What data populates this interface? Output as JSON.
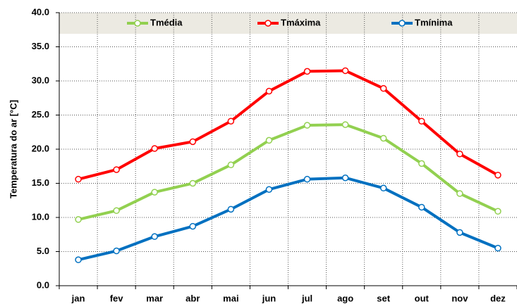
{
  "chart_data": {
    "type": "line",
    "y_label": "Temperatura do ar [°C]",
    "categories": [
      "jan",
      "fev",
      "mar",
      "abr",
      "mai",
      "jun",
      "jul",
      "ago",
      "set",
      "out",
      "nov",
      "dez"
    ],
    "series": [
      {
        "name": "Tmédia",
        "color": "#92d050",
        "values": [
          9.7,
          11.0,
          13.7,
          15.0,
          17.7,
          21.3,
          23.5,
          23.6,
          21.6,
          17.9,
          13.5,
          10.9
        ]
      },
      {
        "name": "Tmáxima",
        "color": "#ff0000",
        "values": [
          15.6,
          17.0,
          20.1,
          21.1,
          24.1,
          28.5,
          31.4,
          31.5,
          28.9,
          24.1,
          19.3,
          16.2
        ]
      },
      {
        "name": "Tmínima",
        "color": "#0070c0",
        "values": [
          3.8,
          5.1,
          7.2,
          8.7,
          11.2,
          14.1,
          15.6,
          15.8,
          14.3,
          11.5,
          7.8,
          5.5
        ]
      }
    ],
    "ylim": [
      0,
      40
    ],
    "yticks": [
      {
        "value": 0,
        "label": "0.0"
      },
      {
        "value": 5,
        "label": "5.0"
      },
      {
        "value": 10,
        "label": "10.0"
      },
      {
        "value": 15,
        "label": "15.0"
      },
      {
        "value": 20,
        "label": "20.0"
      },
      {
        "value": 25,
        "label": "25.0"
      },
      {
        "value": 30,
        "label": "30.0"
      },
      {
        "value": 35,
        "label": "35.0"
      },
      {
        "value": 40,
        "label": "40.0"
      }
    ],
    "grid": true,
    "legend": "top"
  }
}
